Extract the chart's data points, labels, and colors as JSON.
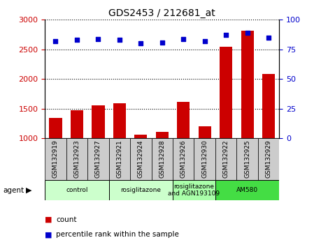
{
  "title": "GDS2453 / 212681_at",
  "samples": [
    "GSM132919",
    "GSM132923",
    "GSM132927",
    "GSM132921",
    "GSM132924",
    "GSM132928",
    "GSM132926",
    "GSM132930",
    "GSM132922",
    "GSM132925",
    "GSM132929"
  ],
  "counts": [
    1340,
    1470,
    1560,
    1595,
    1060,
    1110,
    1620,
    1200,
    2545,
    2820,
    2090
  ],
  "percentiles": [
    82,
    83,
    84,
    83,
    80,
    81,
    84,
    82,
    87,
    89,
    85
  ],
  "ylim_left": [
    1000,
    3000
  ],
  "ylim_right": [
    0,
    100
  ],
  "yticks_left": [
    1000,
    1500,
    2000,
    2500,
    3000
  ],
  "yticks_right": [
    0,
    25,
    50,
    75,
    100
  ],
  "bar_color": "#cc0000",
  "dot_color": "#0000cc",
  "groups": [
    {
      "label": "control",
      "start": 0,
      "end": 3,
      "color": "#ccffcc"
    },
    {
      "label": "rosiglitazone",
      "start": 3,
      "end": 6,
      "color": "#ccffcc"
    },
    {
      "label": "rosiglitazone\nand AGN193109",
      "start": 6,
      "end": 8,
      "color": "#aaffaa"
    },
    {
      "label": "AM580",
      "start": 8,
      "end": 11,
      "color": "#44dd44"
    }
  ],
  "tick_bg_color": "#cccccc",
  "legend_count_color": "#cc0000",
  "legend_dot_color": "#0000cc",
  "grid_color": "#000000",
  "tick_label_color_left": "#cc0000",
  "tick_label_color_right": "#0000cc",
  "agent_label": "agent",
  "background_color": "#ffffff",
  "bar_width": 0.6
}
